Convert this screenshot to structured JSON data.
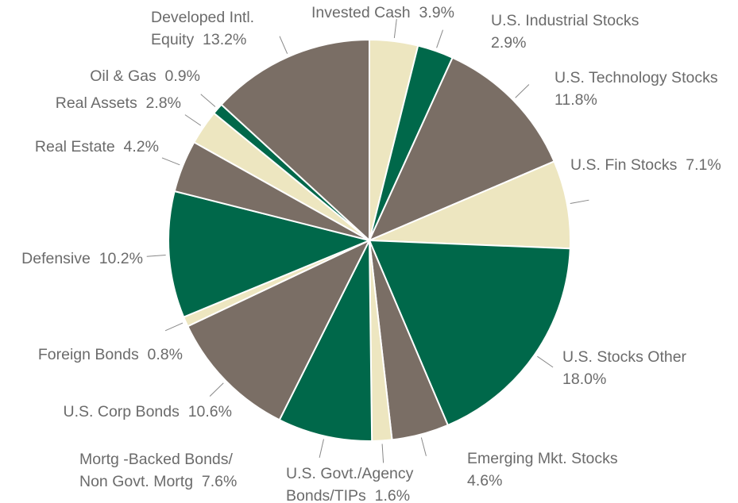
{
  "chart_data": {
    "type": "pie",
    "categories": [
      "Invested Cash",
      "U.S. Industrial Stocks",
      "U.S. Technology Stocks",
      "U.S. Fin Stocks",
      "U.S. Stocks Other",
      "Emerging Mkt. Stocks",
      "U.S. Govt./Agency\nBonds/TIPs",
      "Mortg -Backed Bonds/\nNon Govt. Mortg",
      "U.S. Corp Bonds",
      "Foreign Bonds",
      "Defensive",
      "Real Estate",
      "Real Assets",
      "Oil & Gas",
      "Developed Intl.\nEquity"
    ],
    "values": [
      3.9,
      2.9,
      11.8,
      7.1,
      18.0,
      4.6,
      1.6,
      7.6,
      10.6,
      0.8,
      10.2,
      4.2,
      2.8,
      0.9,
      13.2
    ],
    "value_labels": [
      "3.9%",
      "2.9%",
      "11.8%",
      "7.1%",
      "18.0%",
      "4.6%",
      "1.6%",
      "7.6%",
      "10.6%",
      "0.8%",
      "10.2%",
      "4.2%",
      "2.8%",
      "0.9%",
      "13.2%"
    ],
    "colors": [
      "#ede6c0",
      "#00684a",
      "#7a6e65",
      "#ede6c0",
      "#00684a",
      "#7a6e65",
      "#ede6c0",
      "#00684a",
      "#7a6e65",
      "#ede6c0",
      "#00684a",
      "#7a6e65",
      "#ede6c0",
      "#00684a",
      "#7a6e65"
    ]
  }
}
